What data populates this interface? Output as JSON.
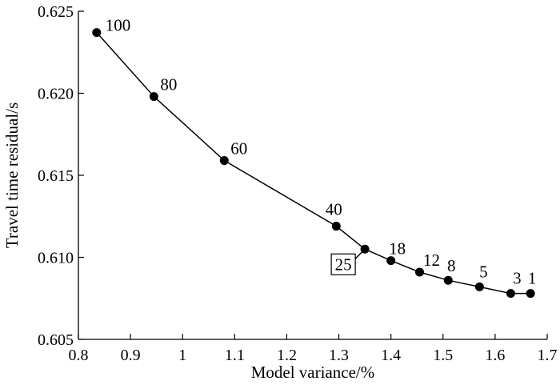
{
  "chart_data": {
    "type": "line",
    "title": "",
    "xlabel": "Model variance/%",
    "ylabel": "Travel time residual/s",
    "xlim": [
      0.8,
      1.7
    ],
    "ylim": [
      0.605,
      0.625
    ],
    "x_ticks": [
      0.8,
      0.9,
      1.0,
      1.1,
      1.2,
      1.3,
      1.4,
      1.5,
      1.6,
      1.7
    ],
    "x_tick_labels": [
      "0.8",
      "0.9",
      "1",
      "1.1",
      "1.2",
      "1.3",
      "1.4",
      "1.5",
      "1.6",
      "1.7"
    ],
    "y_ticks": [
      0.605,
      0.61,
      0.615,
      0.62,
      0.625
    ],
    "y_tick_labels": [
      "0.605",
      "0.610",
      "0.615",
      "0.620",
      "0.625"
    ],
    "grid": false,
    "legend": "none",
    "highlighted_label": "25",
    "points": [
      {
        "label": "100",
        "x": 0.835,
        "y": 0.6237
      },
      {
        "label": "80",
        "x": 0.945,
        "y": 0.6198
      },
      {
        "label": "60",
        "x": 1.08,
        "y": 0.6159
      },
      {
        "label": "40",
        "x": 1.295,
        "y": 0.6119
      },
      {
        "label": "25",
        "x": 1.35,
        "y": 0.6105
      },
      {
        "label": "18",
        "x": 1.4,
        "y": 0.6098
      },
      {
        "label": "12",
        "x": 1.455,
        "y": 0.6091
      },
      {
        "label": "8",
        "x": 1.51,
        "y": 0.6086
      },
      {
        "label": "5",
        "x": 1.57,
        "y": 0.6082
      },
      {
        "label": "3",
        "x": 1.63,
        "y": 0.6078
      },
      {
        "label": "1",
        "x": 1.668,
        "y": 0.6078
      }
    ]
  }
}
